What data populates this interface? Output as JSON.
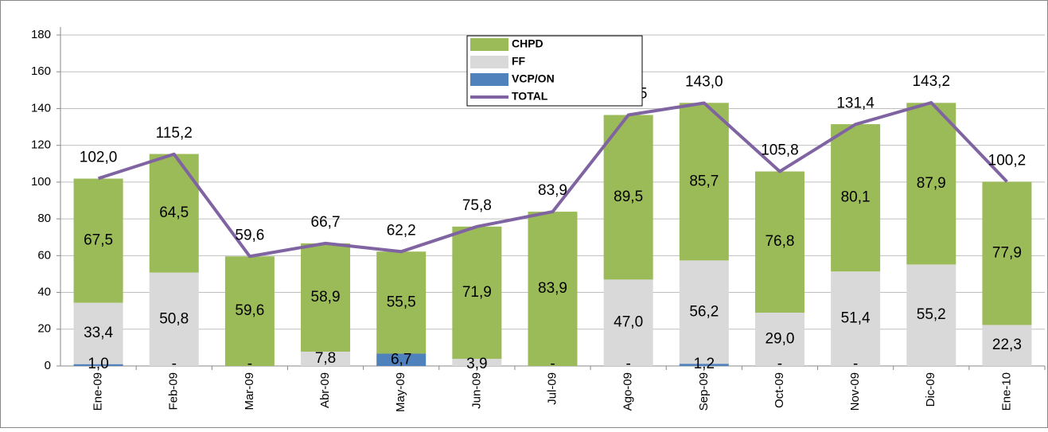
{
  "chart_data": {
    "type": "bar",
    "categories": [
      "Ene-09",
      "Feb-09",
      "Mar-09",
      "Abr-09",
      "May-09",
      "Jun-09",
      "Jul-09",
      "Ago-09",
      "Sep-09",
      "Oct-09",
      "Nov-09",
      "Dic-09",
      "Ene-10"
    ],
    "series": [
      {
        "name": "VCP/ON",
        "color": "#4f81bd",
        "type": "bar",
        "values": [
          1.0,
          0,
          0,
          0,
          6.7,
          0,
          0,
          0,
          1.2,
          0,
          0,
          0,
          0
        ],
        "value_labels": [
          "1,0",
          "-",
          "-",
          null,
          "6,7",
          null,
          "-",
          "-",
          "1,2",
          "-",
          "-",
          null,
          null
        ]
      },
      {
        "name": "FF",
        "color": "#d9d9d9",
        "type": "bar",
        "values": [
          33.4,
          50.8,
          0,
          7.8,
          0,
          3.9,
          0,
          47.0,
          56.2,
          29.0,
          51.4,
          55.2,
          22.3
        ],
        "value_labels": [
          "33,4",
          "50,8",
          null,
          "7,8",
          null,
          "3,9",
          null,
          "47,0",
          "56,2",
          "29,0",
          "51,4",
          "55,2",
          "22,3"
        ]
      },
      {
        "name": "CHPD",
        "color": "#9bbb59",
        "type": "bar",
        "values": [
          67.5,
          64.5,
          59.6,
          58.9,
          55.5,
          71.9,
          83.9,
          89.5,
          85.7,
          76.8,
          80.1,
          87.9,
          77.9
        ],
        "value_labels": [
          "67,5",
          "64,5",
          "59,6",
          "58,9",
          "55,5",
          "71,9",
          "83,9",
          "89,5",
          "85,7",
          "76,8",
          "80,1",
          "87,9",
          "77,9"
        ]
      },
      {
        "name": "TOTAL",
        "color": "#8064a2",
        "type": "line",
        "values": [
          102.0,
          115.2,
          59.6,
          66.7,
          62.2,
          75.8,
          83.9,
          136.5,
          143.0,
          105.8,
          131.4,
          143.2,
          100.2
        ],
        "value_labels": [
          "102,0",
          "115,2",
          "59,6",
          "66,7",
          "62,2",
          "75,8",
          "83,9",
          "136,5",
          "143,0",
          "105,8",
          "131,4",
          "143,2",
          "100,2"
        ]
      }
    ],
    "ylim": [
      0,
      180
    ],
    "yticks": [
      0,
      20,
      40,
      60,
      80,
      100,
      120,
      140,
      160,
      180
    ],
    "grid": true,
    "legend_order": [
      "CHPD",
      "FF",
      "VCP/ON",
      "TOTAL"
    ]
  }
}
